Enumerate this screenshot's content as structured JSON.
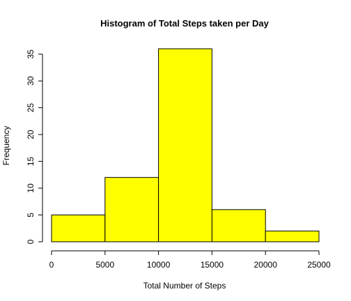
{
  "chart_data": {
    "type": "bar",
    "title": "Histogram of Total Steps taken per Day",
    "xlabel": "Total Number of Steps",
    "ylabel": "Frequency",
    "bins": [
      {
        "start": 0,
        "end": 5000,
        "count": 5
      },
      {
        "start": 5000,
        "end": 10000,
        "count": 12
      },
      {
        "start": 10000,
        "end": 15000,
        "count": 36
      },
      {
        "start": 15000,
        "end": 20000,
        "count": 6
      },
      {
        "start": 20000,
        "end": 25000,
        "count": 2
      }
    ],
    "xticks": [
      "0",
      "5000",
      "10000",
      "15000",
      "20000",
      "25000"
    ],
    "yticks": [
      "0",
      "5",
      "10",
      "15",
      "20",
      "25",
      "30",
      "35"
    ],
    "xlim": [
      0,
      25000
    ],
    "ylim": [
      0,
      36
    ],
    "bar_color": "#ffff00",
    "grid": false,
    "legend": "none"
  }
}
